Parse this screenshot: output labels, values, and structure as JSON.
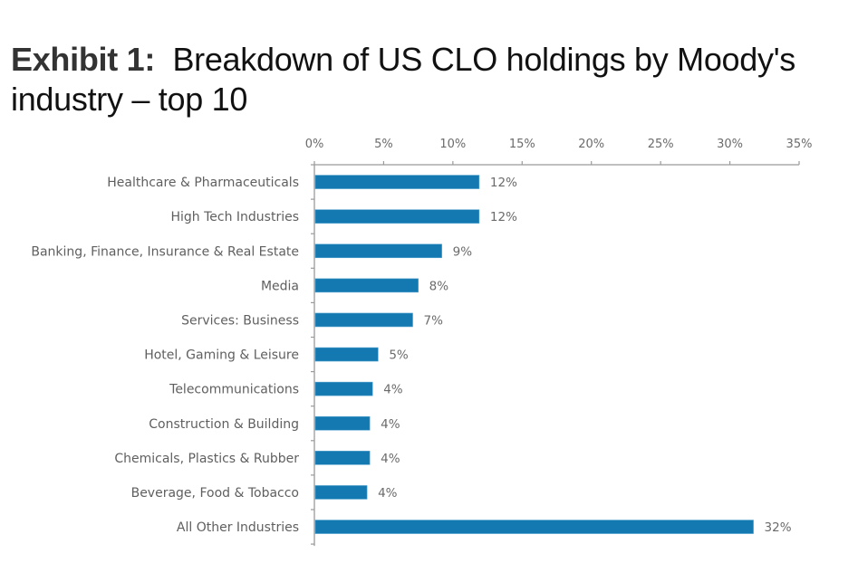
{
  "title": {
    "exhibit": "Exhibit 1:",
    "text": "Breakdown of US CLO holdings by Moody's industry – top 10"
  },
  "chart_data": {
    "type": "bar",
    "orientation": "horizontal",
    "title": "Exhibit 1: Breakdown of US CLO holdings by Moody's industry – top 10",
    "xlabel": "",
    "ylabel": "",
    "xlim": [
      0,
      35
    ],
    "x_ticks": [
      0,
      5,
      10,
      15,
      20,
      25,
      30,
      35
    ],
    "x_tick_labels": [
      "0%",
      "5%",
      "10%",
      "15%",
      "20%",
      "25%",
      "30%",
      "35%"
    ],
    "x_axis_position": "top",
    "grid": false,
    "legend": null,
    "bar_color": "#1379b0",
    "categories": [
      "Healthcare & Pharmaceuticals",
      "High Tech Industries",
      "Banking, Finance, Insurance & Real Estate",
      "Media",
      "Services: Business",
      "Hotel, Gaming & Leisure",
      "Telecommunications",
      "Construction & Building",
      "Chemicals, Plastics & Rubber",
      "Beverage, Food & Tobacco",
      "All Other Industries"
    ],
    "values": [
      11.9,
      11.9,
      9.2,
      7.5,
      7.1,
      4.6,
      4.2,
      4.0,
      4.0,
      3.8,
      31.7
    ],
    "data_labels": [
      "12%",
      "12%",
      "9%",
      "8%",
      "7%",
      "5%",
      "4%",
      "4%",
      "4%",
      "4%",
      "32%"
    ]
  }
}
